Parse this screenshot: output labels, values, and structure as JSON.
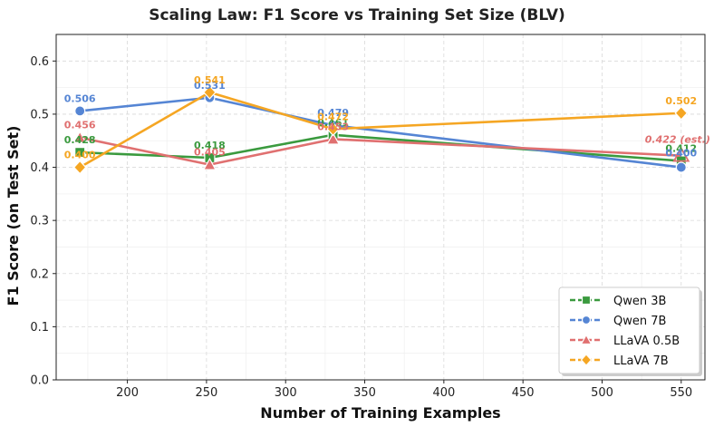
{
  "chart_data": {
    "type": "line",
    "title": "Scaling Law: F1 Score vs Training Set Size (BLV)",
    "xlabel": "Number of Training Examples",
    "ylabel": "F1 Score (on Test Set)",
    "xlim": [
      155,
      565
    ],
    "ylim": [
      0.0,
      0.65
    ],
    "xticks": [
      200,
      250,
      300,
      350,
      400,
      450,
      500,
      550
    ],
    "yticks": [
      0.0,
      0.1,
      0.2,
      0.3,
      0.4,
      0.5,
      0.6
    ],
    "grid": true,
    "legend_position": "bottom-right",
    "series": [
      {
        "name": "Qwen 3B",
        "color": "#3a9a3e",
        "marker": "square",
        "x": [
          170,
          252,
          330,
          550
        ],
        "y": [
          0.428,
          0.418,
          0.461,
          0.412
        ],
        "labels": [
          "0.428",
          "0.418",
          "0.461",
          "0.412"
        ]
      },
      {
        "name": "Qwen 7B",
        "color": "#5585d4",
        "marker": "circle",
        "x": [
          170,
          252,
          330,
          550
        ],
        "y": [
          0.506,
          0.531,
          0.479,
          0.4
        ],
        "labels": [
          "0.506",
          "0.531",
          "0.479",
          "0.400"
        ]
      },
      {
        "name": "LLaVA 0.5B",
        "color": "#e07070",
        "marker": "triangle",
        "x": [
          170,
          252,
          330,
          550
        ],
        "y": [
          0.456,
          0.405,
          0.453,
          0.422
        ],
        "labels": [
          "0.456",
          "0.405",
          "0.453",
          "0.422 (est.)"
        ],
        "last_point_estimated": true
      },
      {
        "name": "LLaVA 7B",
        "color": "#f5a623",
        "marker": "diamond",
        "x": [
          170,
          252,
          330,
          550
        ],
        "y": [
          0.4,
          0.541,
          0.472,
          0.502
        ],
        "labels": [
          "0.400",
          "0.541",
          "0.472",
          "0.502"
        ]
      }
    ]
  }
}
